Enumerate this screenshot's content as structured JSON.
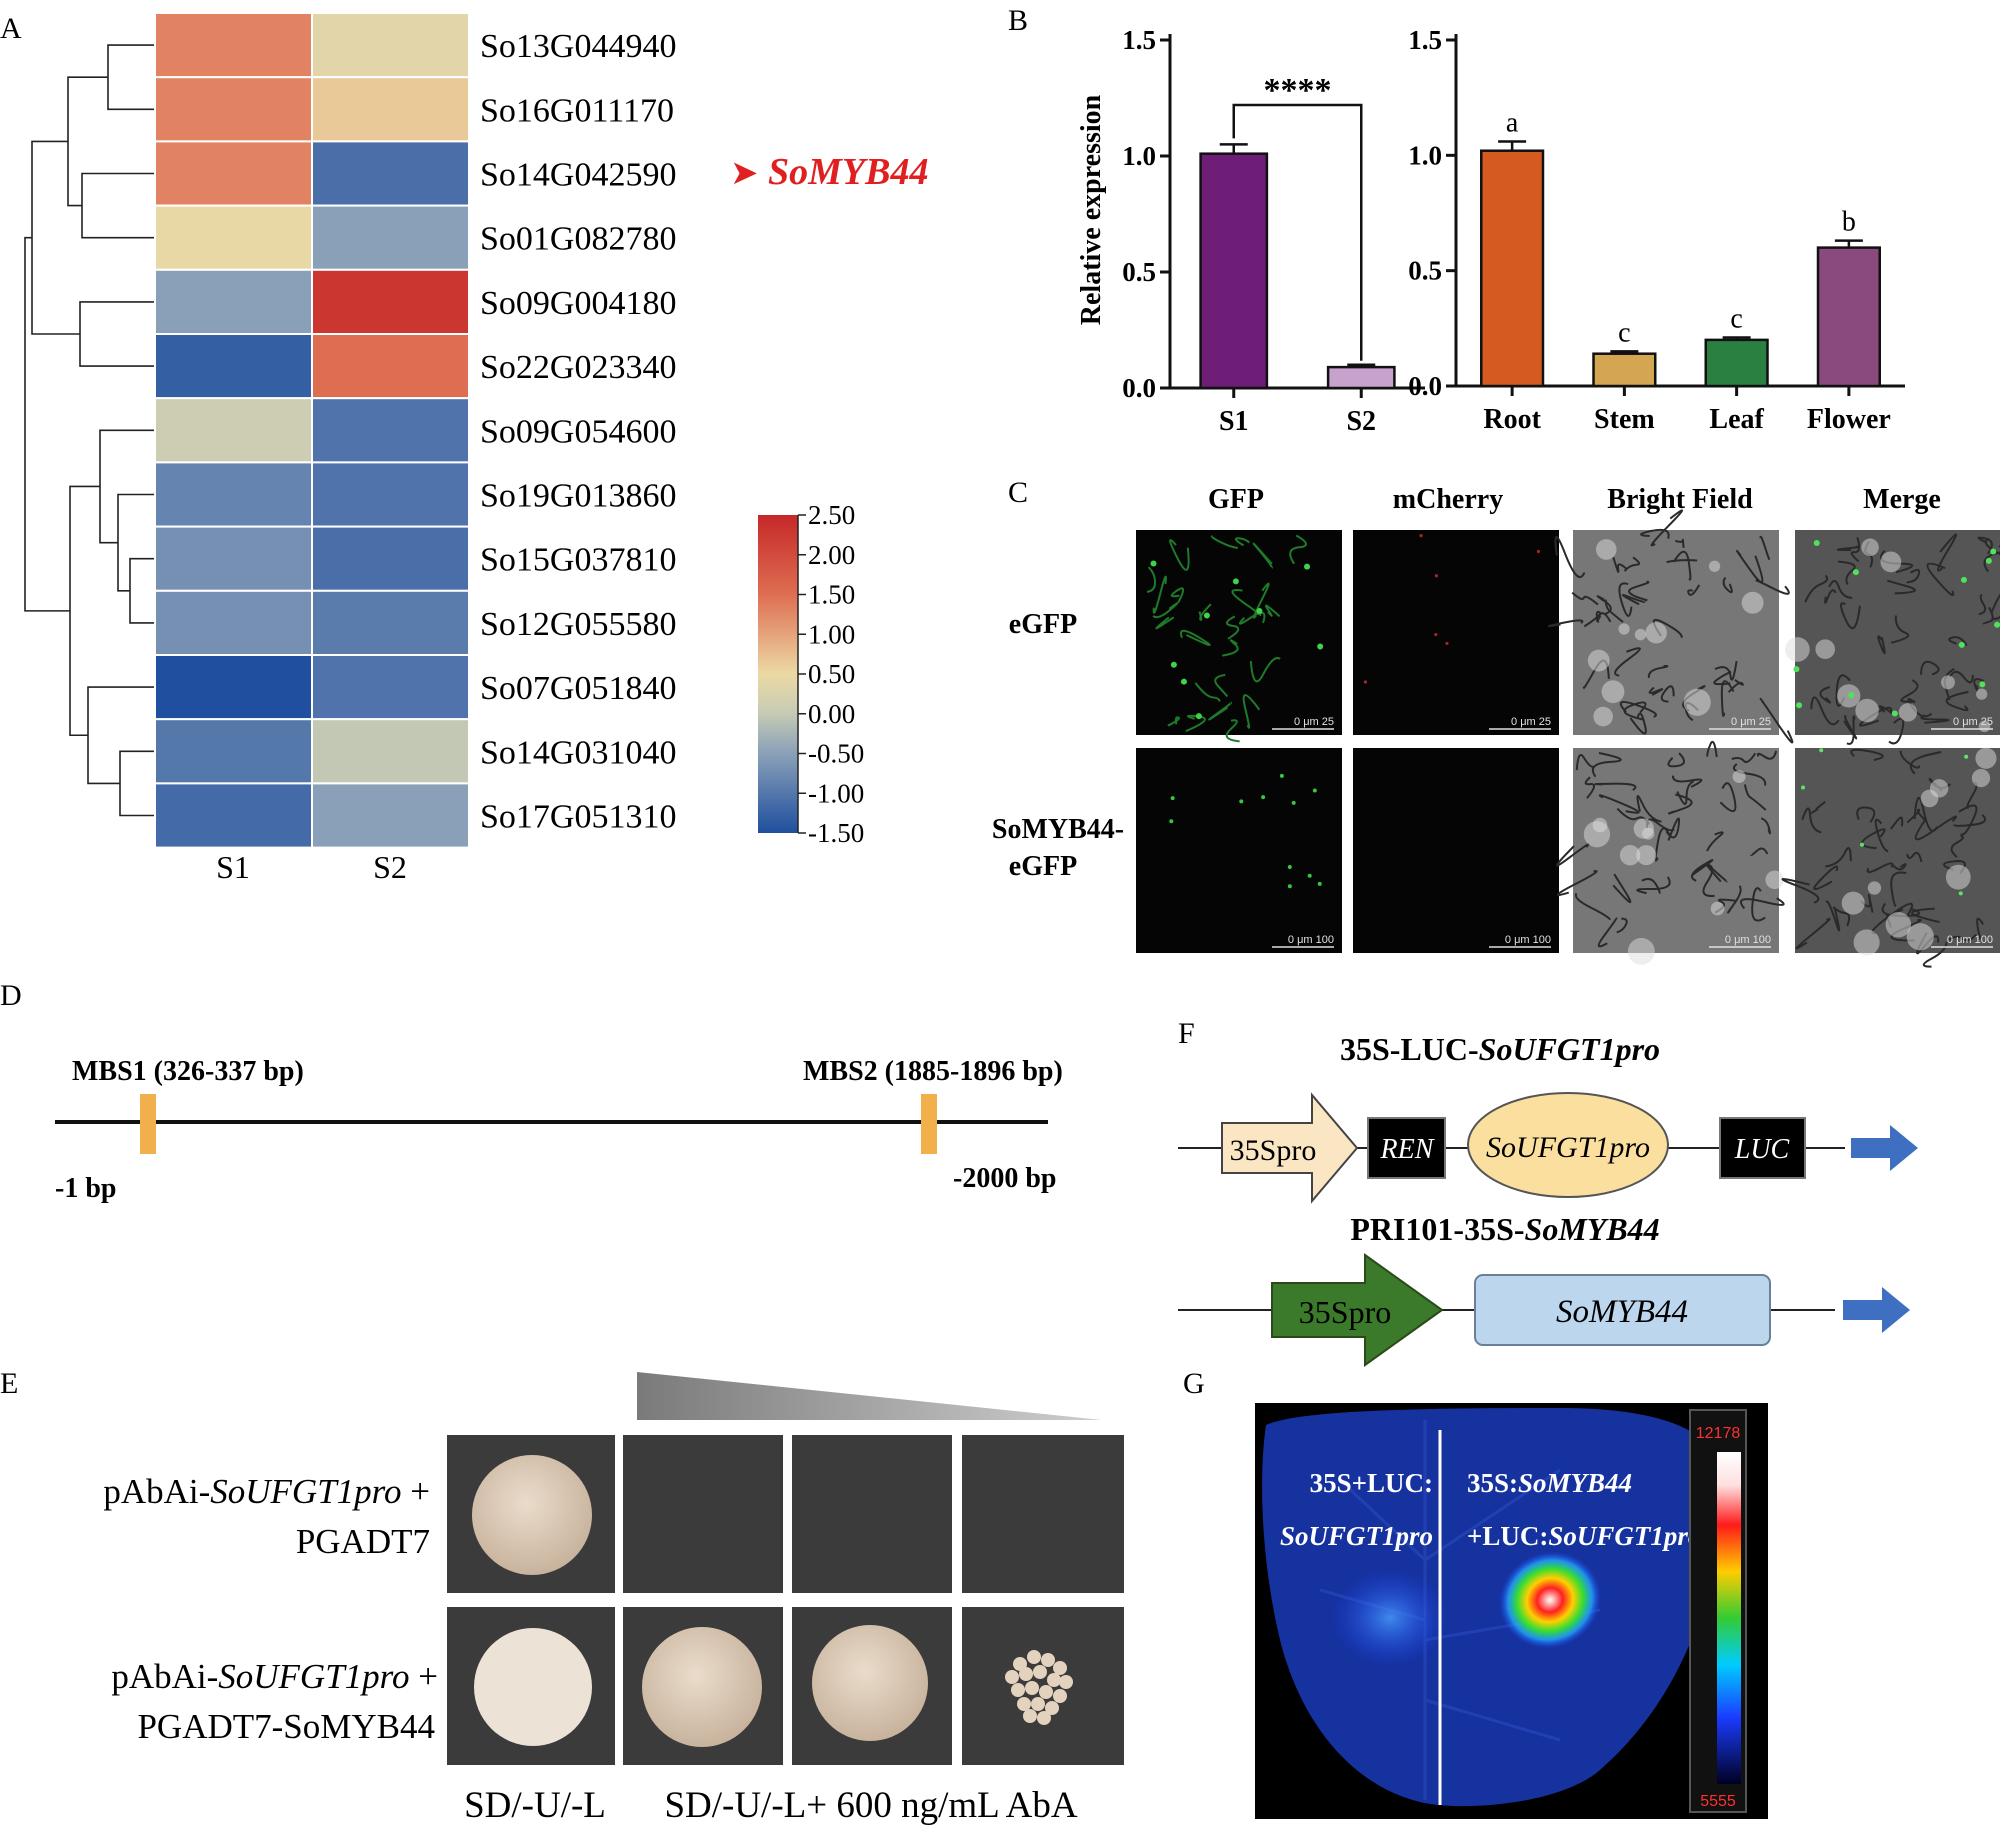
{
  "panel_labels": {
    "A": "A",
    "B": "B",
    "C": "C",
    "D": "D",
    "E": "E",
    "F": "F",
    "G": "G"
  },
  "heatmap": {
    "columns": [
      "S1",
      "S2"
    ],
    "genes": [
      "So13G044940",
      "So16G011170",
      "So14G042590",
      "So01G082780",
      "So09G004180",
      "So22G023340",
      "So09G054600",
      "So19G013860",
      "So15G037810",
      "So12G055580",
      "So07G051840",
      "So14G031040",
      "So17G051310"
    ],
    "values": [
      [
        1.3,
        0.35
      ],
      [
        1.3,
        0.65
      ],
      [
        1.3,
        -1.1
      ],
      [
        0.45,
        -0.5
      ],
      [
        -0.5,
        2.3
      ],
      [
        -1.3,
        1.5
      ],
      [
        0.05,
        -1.05
      ],
      [
        -0.85,
        -1.05
      ],
      [
        -0.7,
        -1.1
      ],
      [
        -0.7,
        -0.95
      ],
      [
        -1.5,
        -1.05
      ],
      [
        -1.0,
        -0.05
      ],
      [
        -1.15,
        -0.5
      ]
    ],
    "highlight": {
      "row": 2,
      "marker": "➤",
      "label": "SoMYB44"
    },
    "colorbar": {
      "ticks": [
        "2.50",
        "2.00",
        "1.50",
        "1.00",
        "0.50",
        "0.00",
        "-0.50",
        "-1.00",
        "-1.50"
      ],
      "min": -1.5,
      "max": 2.5
    },
    "colors": {
      "high": "#c62828",
      "mid": "#ecd9a4",
      "low": "#1f4f9e"
    }
  },
  "chart_data": [
    {
      "type": "bar",
      "title": "",
      "ylabel": "Relative expression",
      "ylim": [
        0,
        1.5
      ],
      "yticks": [
        "0.0",
        "0.5",
        "1.0",
        "1.5"
      ],
      "categories": [
        "S1",
        "S2"
      ],
      "values": [
        1.01,
        0.09
      ],
      "errors": [
        0.04,
        0.01
      ],
      "colors": [
        "#6e1e76",
        "#c7a2cc"
      ],
      "significance": "****"
    },
    {
      "type": "bar",
      "title": "",
      "ylabel": "",
      "ylim": [
        0,
        1.5
      ],
      "yticks": [
        "0.0",
        "0.5",
        "1.0",
        "1.5"
      ],
      "categories": [
        "Root",
        "Stem",
        "Leaf",
        "Flower"
      ],
      "values": [
        1.02,
        0.14,
        0.2,
        0.6
      ],
      "errors": [
        0.04,
        0.01,
        0.01,
        0.03
      ],
      "letters": [
        "a",
        "c",
        "c",
        "b"
      ],
      "colors": [
        "#d45a1f",
        "#d4a652",
        "#2a8040",
        "#8b4a7d"
      ]
    }
  ],
  "microscopy": {
    "columns": [
      "GFP",
      "mCherry",
      "Bright Field",
      "Merge"
    ],
    "rows": [
      "eGFP",
      "SoMYB44-",
      "eGFP"
    ],
    "scale_top": "0   μm   25",
    "scale_bottom": "0   μm 100"
  },
  "promoter": {
    "mbs1": "MBS1 (326-337 bp)",
    "mbs2": "MBS2 (1885-1896 bp)",
    "start": "-1 bp",
    "end": "-2000 bp"
  },
  "yeast": {
    "row1_prefix": "pAbAi-",
    "row1_italic": "SoUFGT1pro",
    "row1_suffix": " +",
    "row1_line2": "PGADT7",
    "row2_prefix": "pAbAi-",
    "row2_italic": "SoUFGT1pro",
    "row2_suffix": " +",
    "row2_line2": "PGADT7-SoMYB44",
    "col_label1": "SD/-U/-L",
    "col_label2": "SD/-U/-L+ 600 ng/mL AbA"
  },
  "constructs": {
    "c1_prefix": "35S-LUC-",
    "c1_italic": "SoUFGT1pro",
    "c1_parts": [
      "35Spro",
      "REN",
      "SoUFGT1pro",
      "LUC"
    ],
    "c2_prefix": "PRI101-35S-",
    "c2_italic": "SoMYB44",
    "c2_parts": [
      "35Spro",
      "SoMYB44"
    ]
  },
  "luc_image": {
    "left_line1": "35S+LUC:",
    "left_line2": "SoUFGT1pro",
    "right_line1_prefix": "35S:",
    "right_line1_italic": "SoMYB44",
    "right_line2_prefix": "+LUC:",
    "right_line2_italic": "SoUFGT1pro",
    "scale_max": "12178",
    "scale_min": "5555"
  }
}
